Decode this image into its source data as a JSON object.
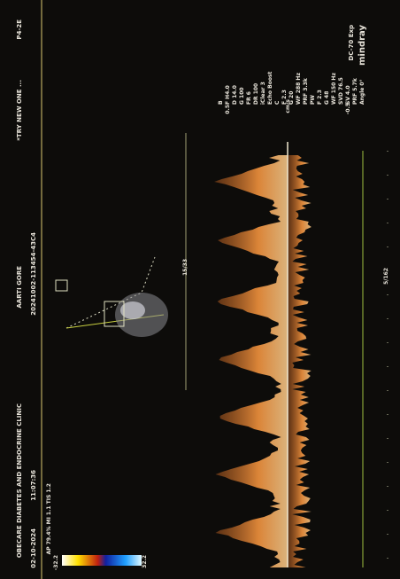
{
  "header": {
    "clinic": "OBECARE DIABETES AND ENDOCRINE CLINIC",
    "patient": "AARTI GORE",
    "preset": "*TRY NEW ONE ...",
    "probe": "P4-2E",
    "date": "02-10-2024",
    "time": "11:07:36",
    "exam_id": "20241002-113454-43C4",
    "acoustic": "AP 79.4% MI 1.1 TIS 1.2"
  },
  "brand": {
    "name": "mindray",
    "model": "DC-70 Exp"
  },
  "params": [
    "B",
    "F H4.0",
    "D 14.0",
    "G 100",
    "FR 6",
    "DR 100",
    "iClear 3",
    "Echo Boost",
    "C",
    "F 2.3",
    "G 20",
    "WF 288 Hz",
    "PRF 3.3k",
    "PW",
    "F 2.3",
    "G 48",
    "WF 150 Hz",
    "SVD 76.5",
    "SV 4.0",
    "PRF 5.7k",
    "Angle 0°"
  ],
  "scale": {
    "top": "0.5",
    "unit": "cm/s",
    "bottom": "-0.5"
  },
  "colorbar": {
    "min": "-32.2",
    "max": "32.2"
  },
  "markers": [
    "15/33",
    "5/162"
  ]
}
